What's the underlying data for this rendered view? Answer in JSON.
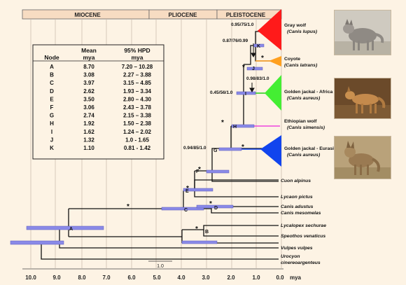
{
  "epochs": [
    {
      "label": "MIOCENE",
      "from": 10.3,
      "to": 5.3
    },
    {
      "label": "PLIOCENE",
      "from": 5.3,
      "to": 2.6
    },
    {
      "label": "PLEISTOCENE",
      "from": 2.6,
      "to": 0.0
    }
  ],
  "axis": {
    "ticks": [
      "10.0",
      "9.0",
      "8.0",
      "7.0",
      "6.0",
      "5.0",
      "4.0",
      "3.0",
      "2.0",
      "1.0",
      "0.0"
    ],
    "unit": "mya",
    "scale_label": "1.0"
  },
  "table": {
    "header_line1": [
      "",
      "Mean",
      "95% HPD"
    ],
    "header_line2": [
      "Node",
      "mya",
      "mya"
    ],
    "rows": [
      [
        "A",
        "8.70",
        "7.20 – 10.28"
      ],
      [
        "B",
        "3.08",
        "2.27 – 3.88"
      ],
      [
        "C",
        "3.97",
        "3.15 – 4.85"
      ],
      [
        "D",
        "2.62",
        "1.93 – 3.34"
      ],
      [
        "E",
        "3.50",
        "2.80 – 4.30"
      ],
      [
        "F",
        "3.06",
        "2.43 – 3.78"
      ],
      [
        "G",
        "2.74",
        "2.15 – 3.38"
      ],
      [
        "H",
        "1.92",
        "1.50 – 2.38"
      ],
      [
        "I",
        "1.62",
        "1.24 – 2.02"
      ],
      [
        "J",
        "1.32",
        "1.0 - 1.65"
      ],
      [
        "K",
        "1.10",
        "0.81 - 1.42"
      ]
    ]
  },
  "taxa": [
    {
      "name": "Gray wolf",
      "sub": "(Canis lupus)"
    },
    {
      "name": "Coyote",
      "sub": "(Canis latrans)"
    },
    {
      "name": "Golden jackal - Africa",
      "sub": "(Canis aureus)"
    },
    {
      "name": "Ethiopian wolf",
      "sub": "(Canis simensis)"
    },
    {
      "name": "Golden jackal - Eurasia",
      "sub": "(Canis aureus)"
    },
    {
      "name": "Cuon alpinus",
      "sub": ""
    },
    {
      "name": "Lycaon pictus",
      "sub": ""
    },
    {
      "name": "Canis adustus",
      "sub": ""
    },
    {
      "name": "Canis mesomelas",
      "sub": ""
    },
    {
      "name": "Lycalopex sechurae",
      "sub": ""
    },
    {
      "name": "Speothos venaticus",
      "sub": ""
    },
    {
      "name": "Vulpes vulpes",
      "sub": ""
    },
    {
      "name": "Urocyon",
      "sub": "cinereoargenteus"
    }
  ],
  "support_labels": [
    "0.95/75/1.0",
    "0.87/76/0.99",
    "0.98/83/1.0",
    "0.45/56/1.0",
    "0.94/85/1.0"
  ],
  "star": "*",
  "colors": {
    "red": "#ff1a1a",
    "orange": "#ffa020",
    "green": "#44ee33",
    "magenta": "#ee44dd",
    "blue": "#1144ee",
    "hpd_bar": "#8a8ae8",
    "epoch_bg": "#f7dcc2"
  }
}
